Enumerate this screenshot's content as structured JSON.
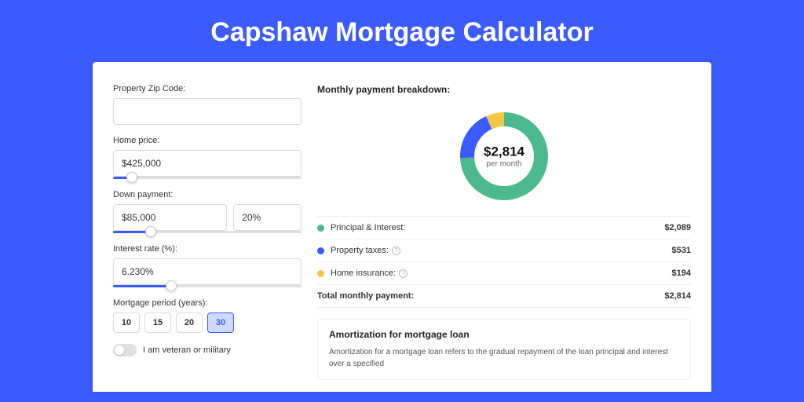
{
  "page": {
    "title": "Capshaw Mortgage Calculator",
    "background_color": "#3b5bff",
    "card_background": "#ffffff"
  },
  "form": {
    "zip": {
      "label": "Property Zip Code:",
      "value": ""
    },
    "home_price": {
      "label": "Home price:",
      "value": "$425,000",
      "slider_percent": 10
    },
    "down_payment": {
      "label": "Down payment:",
      "amount": "$85,000",
      "percent": "20%",
      "slider_percent": 20
    },
    "interest_rate": {
      "label": "Interest rate (%):",
      "value": "6.230%",
      "slider_percent": 31
    },
    "period": {
      "label": "Mortgage period (years):",
      "options": [
        "10",
        "15",
        "20",
        "30"
      ],
      "selected": "30"
    },
    "veteran": {
      "label": "I am veteran or military",
      "checked": false
    }
  },
  "breakdown": {
    "title": "Monthly payment breakdown:",
    "donut": {
      "amount": "$2,814",
      "sub": "per month",
      "slices": [
        {
          "label": "principal",
          "value": 2089,
          "color": "#4cb98f"
        },
        {
          "label": "taxes",
          "value": 531,
          "color": "#3b5bff"
        },
        {
          "label": "insurance",
          "value": 194,
          "color": "#f2c744"
        }
      ],
      "ring_width": 18
    },
    "legend": [
      {
        "dot": "#4cb98f",
        "label": "Principal & Interest:",
        "info": false,
        "value": "$2,089"
      },
      {
        "dot": "#3b5bff",
        "label": "Property taxes:",
        "info": true,
        "value": "$531"
      },
      {
        "dot": "#f2c744",
        "label": "Home insurance:",
        "info": true,
        "value": "$194"
      }
    ],
    "total": {
      "label": "Total monthly payment:",
      "value": "$2,814"
    }
  },
  "amortization": {
    "title": "Amortization for mortgage loan",
    "text": "Amortization for a mortgage loan refers to the gradual repayment of the loan principal and interest over a specified"
  }
}
